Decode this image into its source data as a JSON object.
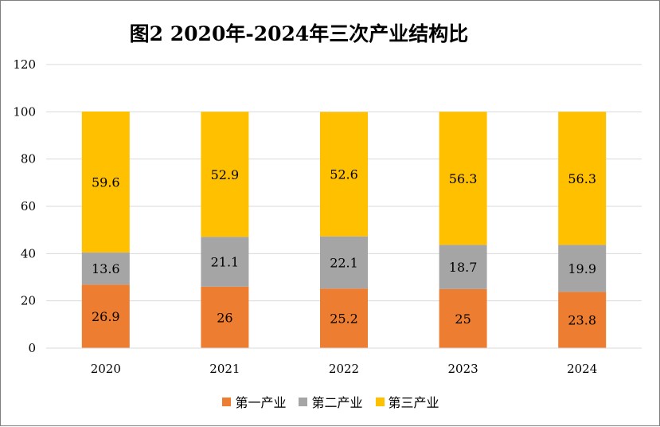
{
  "chart_data": {
    "type": "bar",
    "stacked": true,
    "title": "图2  2020年-2024年三次产业结构比",
    "categories": [
      "2020",
      "2021",
      "2022",
      "2023",
      "2024"
    ],
    "series": [
      {
        "name": "第一产业",
        "color": "#ed7d31",
        "values": [
          26.9,
          26,
          25.2,
          25,
          23.8
        ],
        "labels": [
          "26.9",
          "26",
          "25.2",
          "25",
          "23.8"
        ]
      },
      {
        "name": "第二产业",
        "color": "#a5a5a5",
        "values": [
          13.6,
          21.1,
          22.1,
          18.7,
          19.9
        ],
        "labels": [
          "13.6",
          "21.1",
          "22.1",
          "18.7",
          "19.9"
        ]
      },
      {
        "name": "第三产业",
        "color": "#ffc000",
        "values": [
          59.6,
          52.9,
          52.6,
          56.3,
          56.3
        ],
        "labels": [
          "59.6",
          "52.9",
          "52.6",
          "56.3",
          "56.3"
        ]
      }
    ],
    "ylim": [
      0,
      120
    ],
    "yticks": [
      "0",
      "20",
      "40",
      "60",
      "80",
      "100",
      "120"
    ],
    "grid": true,
    "legend_position": "bottom",
    "xlabel": "",
    "ylabel": ""
  }
}
